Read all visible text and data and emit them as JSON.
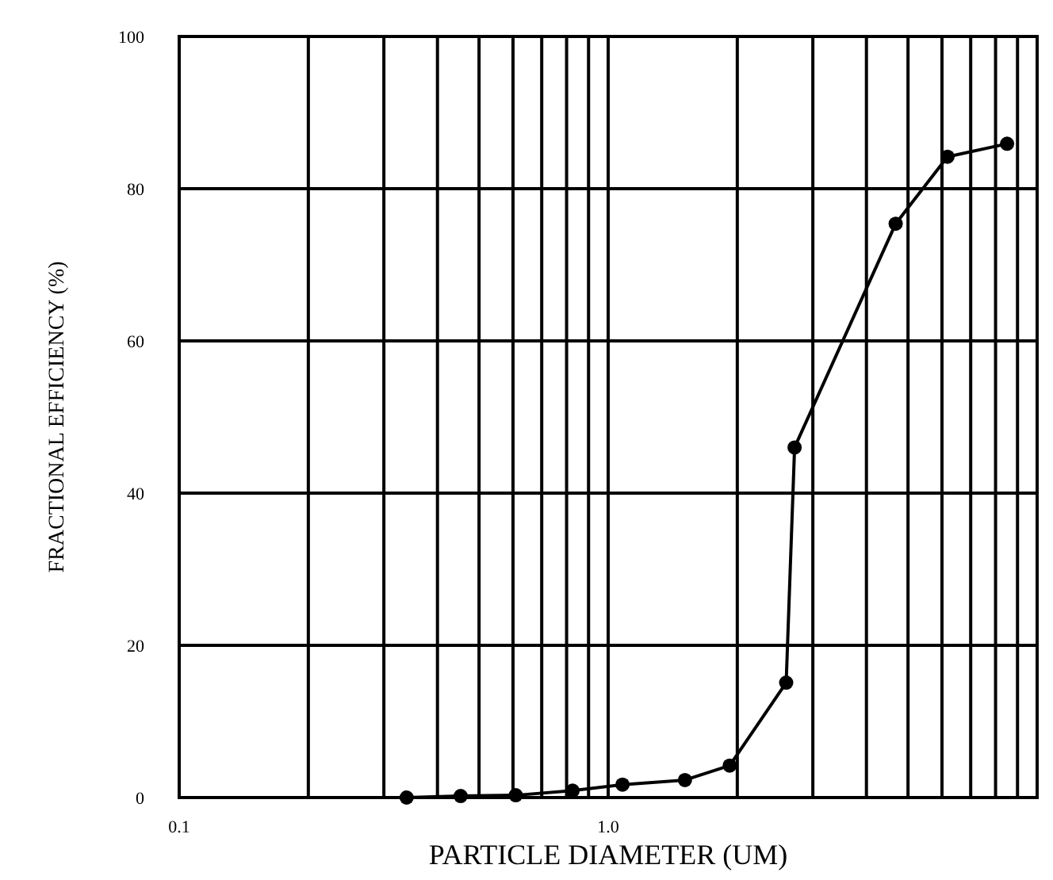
{
  "chart_data": {
    "type": "line",
    "xlabel": "PARTICLE DIAMETER (UM)",
    "ylabel": "FRACTIONAL EFFICIENCY (%)",
    "log": "x",
    "x": [
      0.339,
      0.453,
      0.609,
      0.826,
      1.08,
      1.51,
      1.92,
      2.6,
      2.72,
      4.68,
      6.18,
      8.51
    ],
    "series": [
      {
        "color": "#000000",
        "values": [
          0,
          0.2,
          0.3,
          0.9,
          1.7,
          2.3,
          4.2,
          15.1,
          46,
          75.4,
          84.2,
          85.9
        ]
      }
    ],
    "xlim": [
      0.1,
      10
    ],
    "xticks": [
      0.1,
      {
        "value": 1,
        "label": "1.0"
      }
    ],
    "ylim": [
      0,
      100
    ],
    "yticks": [
      0,
      20,
      40,
      60,
      80,
      100
    ],
    "grid": true,
    "marker": "circle",
    "line_style": "solid"
  }
}
